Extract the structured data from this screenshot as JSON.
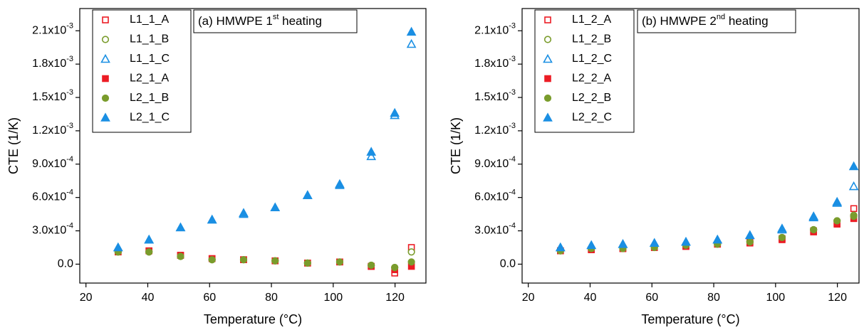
{
  "chart_data": [
    {
      "type": "scatter",
      "xlabel": "Temperature (°C)",
      "ylabel": "CTE (1/K)",
      "annotation": {
        "text": "(a) HMWPE 1",
        "superscript": "st",
        "text_after": " heating"
      },
      "xlim": [
        18,
        130
      ],
      "ylim": [
        -0.00017,
        0.0023
      ],
      "xticks": [
        20,
        40,
        60,
        80,
        100,
        120
      ],
      "yticks": [
        {
          "value": 0,
          "label": "0.0"
        },
        {
          "value": 0.0003,
          "label": "3.0x10",
          "exponent": "-4"
        },
        {
          "value": 0.0006,
          "label": "6.0x10",
          "exponent": "-4"
        },
        {
          "value": 0.0009,
          "label": "9.0x10",
          "exponent": "-4"
        },
        {
          "value": 0.0012,
          "label": "1.2x10",
          "exponent": "-3"
        },
        {
          "value": 0.0015,
          "label": "1.5x10",
          "exponent": "-3"
        },
        {
          "value": 0.0018,
          "label": "1.8x10",
          "exponent": "-3"
        },
        {
          "value": 0.0021,
          "label": "2.1x10",
          "exponent": "-3"
        }
      ],
      "legend": "upper left",
      "x": [
        30.4,
        40.4,
        50.6,
        60.8,
        71,
        81.2,
        91.7,
        102.1,
        112.3,
        119.9,
        125.3
      ],
      "series": [
        {
          "name": "L1_1_A",
          "color": "#ec1c24",
          "marker": "square",
          "filled": false,
          "values": [
            0.00011,
            0.00012,
            8e-05,
            5e-05,
            4e-05,
            3e-05,
            1e-05,
            2e-05,
            -2e-05,
            -8e-05,
            0.00015
          ]
        },
        {
          "name": "L1_1_B",
          "color": "#7a9c2c",
          "marker": "circle",
          "filled": false,
          "values": [
            0.00011,
            0.00011,
            7e-05,
            4e-05,
            4e-05,
            3e-05,
            1e-05,
            2e-05,
            -1e-05,
            -3e-05,
            0.00011
          ]
        },
        {
          "name": "L1_1_C",
          "color": "#1a8fe3",
          "marker": "triangle",
          "filled": false,
          "values": [
            0.00015,
            0.00022,
            0.00033,
            0.0004,
            0.00045,
            0.00051,
            0.00062,
            0.00071,
            0.00097,
            0.00134,
            0.00198
          ]
        },
        {
          "name": "L2_1_A",
          "color": "#ec1c24",
          "marker": "square",
          "filled": true,
          "values": [
            0.00011,
            0.00012,
            8e-05,
            5e-05,
            4e-05,
            3e-05,
            1e-05,
            2e-05,
            -2e-05,
            -5e-05,
            -2e-05
          ]
        },
        {
          "name": "L2_1_B",
          "color": "#7a9c2c",
          "marker": "circle",
          "filled": true,
          "values": [
            0.00011,
            0.00011,
            7e-05,
            4e-05,
            4e-05,
            3e-05,
            1e-05,
            2e-05,
            -1e-05,
            -3e-05,
            2e-05
          ]
        },
        {
          "name": "L2_1_C",
          "color": "#1a8fe3",
          "marker": "triangle",
          "filled": true,
          "values": [
            0.00015,
            0.00022,
            0.00033,
            0.0004,
            0.00046,
            0.00051,
            0.00062,
            0.00072,
            0.00101,
            0.00136,
            0.00209
          ]
        }
      ]
    },
    {
      "type": "scatter",
      "xlabel": "Temperature (°C)",
      "ylabel": "CTE (1/K)",
      "annotation": {
        "text": "(b) HMWPE 2",
        "superscript": "nd",
        "text_after": " heating"
      },
      "xlim": [
        18,
        127
      ],
      "ylim": [
        -0.00017,
        0.0023
      ],
      "xticks": [
        20,
        40,
        60,
        80,
        100,
        120
      ],
      "yticks": [
        {
          "value": 0,
          "label": "0.0"
        },
        {
          "value": 0.0003,
          "label": "3.0x10",
          "exponent": "-4"
        },
        {
          "value": 0.0006,
          "label": "6.0x10",
          "exponent": "-4"
        },
        {
          "value": 0.0009,
          "label": "9.0x10",
          "exponent": "-4"
        },
        {
          "value": 0.0012,
          "label": "1.2x10",
          "exponent": "-3"
        },
        {
          "value": 0.0015,
          "label": "1.5x10",
          "exponent": "-3"
        },
        {
          "value": 0.0018,
          "label": "1.8x10",
          "exponent": "-3"
        },
        {
          "value": 0.0021,
          "label": "2.1x10",
          "exponent": "-3"
        }
      ],
      "legend": "upper left",
      "x": [
        30.4,
        40.4,
        50.6,
        60.8,
        71,
        81.2,
        91.7,
        102.1,
        112.3,
        119.9,
        125.3
      ],
      "series": [
        {
          "name": "L1_2_A",
          "color": "#ec1c24",
          "marker": "square",
          "filled": false,
          "values": [
            0.00012,
            0.00013,
            0.00014,
            0.00015,
            0.00016,
            0.00018,
            0.0002,
            0.00023,
            0.0003,
            0.00037,
            0.0005
          ]
        },
        {
          "name": "L1_2_B",
          "color": "#7a9c2c",
          "marker": "circle",
          "filled": false,
          "values": [
            0.00012,
            0.00014,
            0.00014,
            0.00015,
            0.00017,
            0.00018,
            0.0002,
            0.00024,
            0.00031,
            0.00039,
            0.00044
          ]
        },
        {
          "name": "L1_2_C",
          "color": "#1a8fe3",
          "marker": "triangle",
          "filled": false,
          "values": [
            0.00015,
            0.00017,
            0.00018,
            0.00019,
            0.0002,
            0.00022,
            0.00026,
            0.00031,
            0.00042,
            0.00055,
            0.0007
          ]
        },
        {
          "name": "L2_2_A",
          "color": "#ec1c24",
          "marker": "square",
          "filled": true,
          "values": [
            0.00012,
            0.00013,
            0.00014,
            0.00015,
            0.00016,
            0.00018,
            0.00019,
            0.00022,
            0.00029,
            0.00036,
            0.00041
          ]
        },
        {
          "name": "L2_2_B",
          "color": "#7a9c2c",
          "marker": "circle",
          "filled": true,
          "values": [
            0.00012,
            0.00014,
            0.00014,
            0.00015,
            0.00017,
            0.00018,
            0.0002,
            0.00024,
            0.00031,
            0.00039,
            0.00043
          ]
        },
        {
          "name": "L2_2_C",
          "color": "#1a8fe3",
          "marker": "triangle",
          "filled": true,
          "values": [
            0.00015,
            0.00017,
            0.00018,
            0.00019,
            0.0002,
            0.00022,
            0.00026,
            0.00032,
            0.00043,
            0.00056,
            0.00088
          ]
        }
      ]
    }
  ]
}
